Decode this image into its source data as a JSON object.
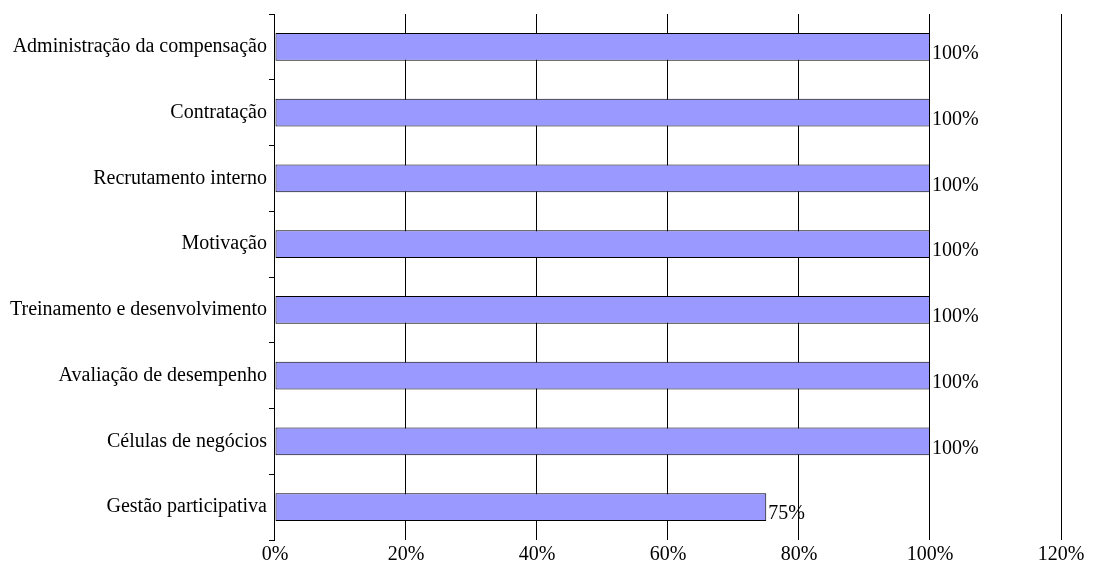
{
  "chart_data": {
    "type": "bar",
    "orientation": "horizontal",
    "categories": [
      "Administração da compensação",
      "Contratação",
      "Recrutamento interno",
      "Motivação",
      "Treinamento e desenvolvimento",
      "Avaliação de desempenho",
      "Células de negócios",
      "Gestão participativa"
    ],
    "values": [
      100,
      100,
      100,
      100,
      100,
      100,
      100,
      75
    ],
    "value_labels": [
      "100%",
      "100%",
      "100%",
      "100%",
      "100%",
      "100%",
      "100%",
      "75%"
    ],
    "color": "#9999ff",
    "xlim": [
      0,
      120
    ],
    "xticks": [
      {
        "value": 0,
        "label": "0%"
      },
      {
        "value": 20,
        "label": "20%"
      },
      {
        "value": 40,
        "label": "40%"
      },
      {
        "value": 60,
        "label": "60%"
      },
      {
        "value": 80,
        "label": "80%"
      },
      {
        "value": 100,
        "label": "100%"
      },
      {
        "value": 120,
        "label": "120%"
      }
    ],
    "grid": "x",
    "legend": false
  }
}
